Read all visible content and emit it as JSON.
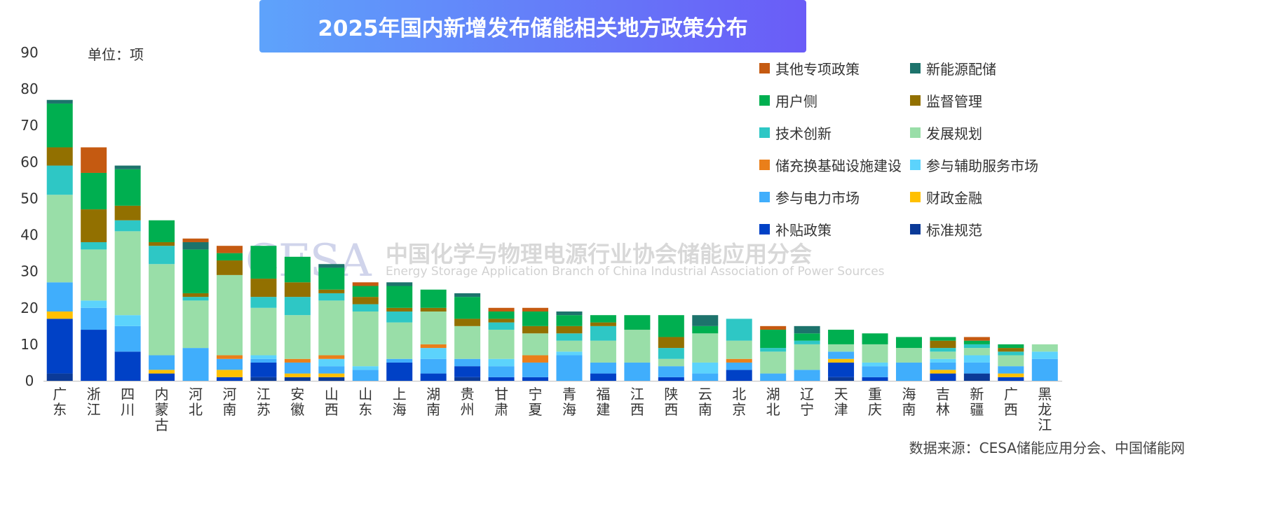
{
  "chart_data": {
    "type": "bar",
    "stacked": true,
    "title": "2025年国内新增发布储能相关地方政策分布",
    "unit_label": "单位：项",
    "source": "数据来源：CESA储能应用分会、中国储能网",
    "ylim": [
      0,
      90
    ],
    "yticks": [
      0,
      10,
      20,
      30,
      40,
      50,
      60,
      70,
      80,
      90
    ],
    "grid": false,
    "legend_position": "top-right",
    "categories": [
      "广东",
      "浙江",
      "四川",
      "内蒙古",
      "河北",
      "河南",
      "江苏",
      "安徽",
      "山西",
      "山东",
      "上海",
      "湖南",
      "贵州",
      "甘肃",
      "宁夏",
      "青海",
      "福建",
      "江西",
      "陕西",
      "云南",
      "北京",
      "湖北",
      "辽宁",
      "天津",
      "重庆",
      "海南",
      "吉林",
      "新疆",
      "广西",
      "黑龙江"
    ],
    "series": [
      {
        "name": "标准规范",
        "color": "#0b3a98",
        "values": [
          2,
          0,
          0,
          0,
          0,
          0,
          1,
          1,
          1,
          0,
          0,
          0,
          1,
          0,
          0,
          0,
          0,
          0,
          0,
          0,
          0,
          0,
          0,
          1,
          0,
          0,
          0,
          2,
          0,
          0
        ]
      },
      {
        "name": "补贴政策",
        "color": "#0041c6",
        "values": [
          15,
          14,
          8,
          2,
          0,
          1,
          4,
          0,
          0,
          0,
          5,
          2,
          3,
          1,
          1,
          0,
          2,
          0,
          1,
          0,
          3,
          0,
          0,
          4,
          1,
          0,
          2,
          0,
          1,
          0
        ]
      },
      {
        "name": "财政金融",
        "color": "#ffc000",
        "values": [
          2,
          0,
          0,
          1,
          0,
          2,
          0,
          1,
          1,
          0,
          0,
          0,
          0,
          0,
          0,
          0,
          0,
          0,
          0,
          0,
          0,
          0,
          0,
          1,
          0,
          0,
          1,
          0,
          1,
          0
        ]
      },
      {
        "name": "参与电力市场",
        "color": "#40aefc",
        "values": [
          8,
          6,
          7,
          4,
          9,
          3,
          1,
          3,
          2,
          3,
          1,
          4,
          2,
          3,
          4,
          7,
          3,
          5,
          3,
          2,
          2,
          2,
          3,
          2,
          3,
          5,
          2,
          3,
          2,
          6
        ]
      },
      {
        "name": "参与辅助服务市场",
        "color": "#5cd3fc",
        "values": [
          0,
          2,
          3,
          0,
          0,
          0,
          1,
          0,
          2,
          1,
          0,
          3,
          0,
          2,
          0,
          1,
          0,
          0,
          0,
          3,
          0,
          0,
          0,
          0,
          1,
          0,
          1,
          2,
          0,
          2
        ]
      },
      {
        "name": "储充换基础设施建设",
        "color": "#ea7f1a",
        "values": [
          0,
          0,
          0,
          0,
          0,
          1,
          0,
          1,
          1,
          0,
          0,
          1,
          0,
          0,
          2,
          0,
          0,
          0,
          0,
          0,
          1,
          0,
          0,
          0,
          0,
          0,
          0,
          0,
          0,
          0
        ]
      },
      {
        "name": "发展规划",
        "color": "#99dea8",
        "values": [
          24,
          14,
          23,
          25,
          13,
          22,
          13,
          12,
          15,
          15,
          10,
          9,
          9,
          8,
          6,
          3,
          6,
          9,
          2,
          8,
          5,
          6,
          7,
          2,
          5,
          4,
          2,
          2,
          3,
          2
        ]
      },
      {
        "name": "技术创新",
        "color": "#2ec7c5",
        "values": [
          8,
          2,
          3,
          5,
          1,
          0,
          3,
          5,
          2,
          2,
          3,
          0,
          0,
          2,
          0,
          2,
          4,
          0,
          3,
          0,
          6,
          1,
          1,
          0,
          0,
          0,
          1,
          1,
          1,
          0
        ]
      },
      {
        "name": "监督管理",
        "color": "#927000",
        "values": [
          5,
          9,
          4,
          1,
          1,
          4,
          5,
          4,
          1,
          2,
          1,
          1,
          2,
          1,
          2,
          2,
          1,
          0,
          3,
          0,
          0,
          0,
          0,
          0,
          0,
          0,
          2,
          0,
          1,
          0
        ]
      },
      {
        "name": "用户侧",
        "color": "#00af50",
        "values": [
          12,
          10,
          10,
          6,
          12,
          2,
          9,
          7,
          6,
          3,
          6,
          5,
          6,
          2,
          4,
          3,
          2,
          4,
          6,
          2,
          0,
          5,
          2,
          4,
          3,
          3,
          1,
          1,
          1,
          0
        ]
      },
      {
        "name": "新能源配储",
        "color": "#1d736c",
        "values": [
          1,
          0,
          1,
          0,
          2,
          0,
          0,
          0,
          1,
          0,
          1,
          0,
          1,
          0,
          0,
          1,
          0,
          0,
          0,
          3,
          0,
          0,
          2,
          0,
          0,
          0,
          0,
          0,
          0,
          0
        ]
      },
      {
        "name": "其他专项政策",
        "color": "#c55a11",
        "values": [
          0,
          7,
          0,
          0,
          1,
          2,
          0,
          0,
          0,
          1,
          0,
          0,
          0,
          1,
          1,
          0,
          0,
          0,
          0,
          0,
          0,
          1,
          0,
          0,
          0,
          0,
          0,
          1,
          0,
          0
        ]
      }
    ],
    "legend_order": [
      "其他专项政策",
      "新能源配储",
      "用户侧",
      "监督管理",
      "技术创新",
      "发展规划",
      "储充换基础设施建设",
      "参与辅助服务市场",
      "参与电力市场",
      "财政金融",
      "补贴政策",
      "标准规范"
    ]
  },
  "watermark": {
    "logo": "CESA",
    "name": "中国化学与物理电源行业协会储能应用分会",
    "name_en": "Energy Storage Application Branch of China Industrial Association of Power Sources"
  }
}
